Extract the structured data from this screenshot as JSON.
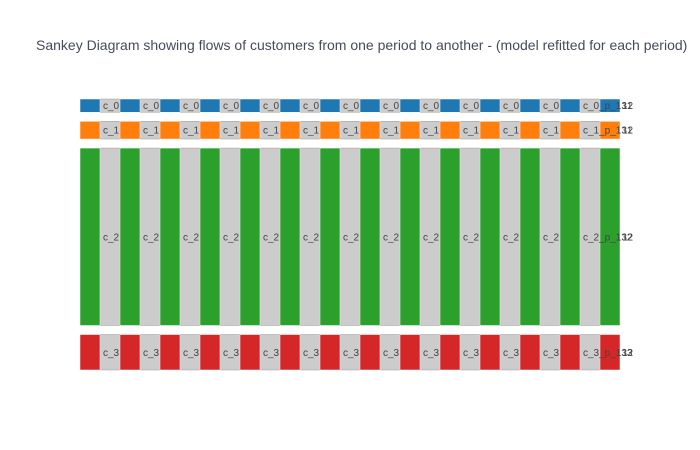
{
  "chart_data": {
    "type": "sankey",
    "title": "Sankey Diagram showing flows of customers from one period to another - (model refitted for each period)",
    "colors": {
      "cluster_0": "#1f77b4",
      "cluster_1": "#ff7f0e",
      "cluster_2": "#2ca02c",
      "cluster_3": "#d62728",
      "link_fill": "#cccccc",
      "link_stroke": "#888888"
    },
    "periods": [
      {
        "labels": [
          "c_0",
          "c_1",
          "c_2",
          "c_3"
        ],
        "values": [
          6,
          8,
          80,
          16
        ]
      },
      {
        "labels": [
          "c_0",
          "c_1",
          "c_2",
          "c_3"
        ],
        "values": [
          6,
          8,
          80,
          16
        ]
      },
      {
        "labels": [
          "c_0",
          "c_1",
          "c_2",
          "c_3"
        ],
        "values": [
          6,
          8,
          80,
          16
        ]
      },
      {
        "labels": [
          "c_0",
          "c_1",
          "c_2",
          "c_3"
        ],
        "values": [
          6,
          8,
          80,
          16
        ]
      },
      {
        "labels": [
          "c_0",
          "c_1",
          "c_2",
          "c_3"
        ],
        "values": [
          6,
          8,
          80,
          16
        ]
      },
      {
        "labels": [
          "c_0",
          "c_1",
          "c_2",
          "c_3"
        ],
        "values": [
          6,
          8,
          80,
          16
        ]
      },
      {
        "labels": [
          "c_0",
          "c_1",
          "c_2",
          "c_3"
        ],
        "values": [
          6,
          8,
          80,
          16
        ]
      },
      {
        "labels": [
          "c_0",
          "c_1",
          "c_2",
          "c_3"
        ],
        "values": [
          6,
          8,
          80,
          16
        ]
      },
      {
        "labels": [
          "c_0",
          "c_1",
          "c_2",
          "c_3"
        ],
        "values": [
          6,
          8,
          80,
          16
        ]
      },
      {
        "labels": [
          "c_0",
          "c_1",
          "c_2",
          "c_3"
        ],
        "values": [
          6,
          8,
          80,
          16
        ]
      },
      {
        "labels": [
          "c_0",
          "c_1",
          "c_2",
          "c_3"
        ],
        "values": [
          6,
          8,
          80,
          16
        ]
      },
      {
        "labels": [
          "c_0",
          "c_1",
          "c_2",
          "c_3"
        ],
        "values": [
          6,
          8,
          80,
          16
        ]
      },
      {
        "labels": [
          "c_0_p_131",
          "c_1_p_131",
          "c_2_p_132",
          "c_3_p_133"
        ],
        "values": [
          6,
          8,
          80,
          16
        ]
      },
      {
        "labels": [
          "12",
          "12",
          "12",
          "12"
        ],
        "values": [
          6,
          8,
          80,
          16
        ]
      }
    ],
    "flows": [
      {
        "from": 0,
        "to": 0,
        "value": 6
      },
      {
        "from": 1,
        "to": 1,
        "value": 8
      },
      {
        "from": 2,
        "to": 2,
        "value": 80
      },
      {
        "from": 3,
        "to": 3,
        "value": 16
      }
    ]
  }
}
